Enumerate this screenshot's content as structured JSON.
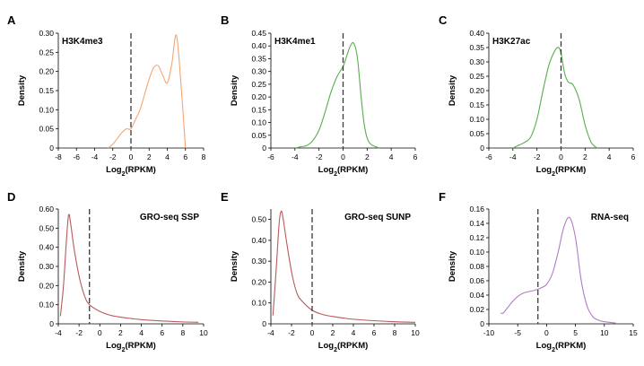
{
  "chart_data": [
    {
      "panel": "A",
      "type": "line",
      "title": "H3K4me3",
      "xlabel": "Log2(RPKM)",
      "ylabel": "Density",
      "xlim": [
        -8,
        8
      ],
      "ylim": [
        0,
        0.3
      ],
      "xticks": [
        -8,
        -6,
        -4,
        -2,
        0,
        2,
        4,
        6,
        8
      ],
      "yticks": [
        0,
        0.05,
        0.1,
        0.15,
        0.2,
        0.25,
        0.3
      ],
      "ytick_labels": [
        "0",
        "0.05",
        "0.10",
        "0.15",
        "0.20",
        "0.25",
        "0.30"
      ],
      "vline": 0,
      "series": [
        {
          "color": "#f4a574",
          "x": [
            -2.5,
            -2,
            -1.5,
            -1,
            -0.5,
            0,
            0.5,
            1,
            1.5,
            2,
            2.5,
            3,
            3.5,
            4,
            4.5,
            5,
            5.5,
            6
          ],
          "y": [
            0,
            0.01,
            0.025,
            0.04,
            0.05,
            0.05,
            0.075,
            0.1,
            0.14,
            0.18,
            0.21,
            0.215,
            0.19,
            0.17,
            0.22,
            0.295,
            0.17,
            0.0
          ]
        }
      ]
    },
    {
      "panel": "B",
      "type": "line",
      "title": "H3K4me1",
      "xlabel": "Log2(RPKM)",
      "ylabel": "Density",
      "xlim": [
        -6,
        6
      ],
      "ylim": [
        0,
        0.45
      ],
      "xticks": [
        -6,
        -4,
        -2,
        0,
        2,
        4,
        6
      ],
      "yticks": [
        0,
        0.05,
        0.1,
        0.15,
        0.2,
        0.25,
        0.3,
        0.35,
        0.4,
        0.45
      ],
      "ytick_labels": [
        "0",
        "0.05",
        "0.10",
        "0.15",
        "0.20",
        "0.25",
        "0.30",
        "0.35",
        "0.40",
        "0.45"
      ],
      "vline": 0,
      "series": [
        {
          "color": "#5aad4f",
          "x": [
            -4,
            -3.5,
            -3,
            -2.5,
            -2,
            -1.5,
            -1,
            -0.5,
            0,
            0.3,
            0.6,
            0.9,
            1.2,
            1.5,
            1.8,
            2.2,
            3
          ],
          "y": [
            0,
            0.005,
            0.01,
            0.03,
            0.07,
            0.14,
            0.22,
            0.28,
            0.32,
            0.36,
            0.4,
            0.41,
            0.35,
            0.2,
            0.08,
            0.02,
            0.0
          ]
        }
      ]
    },
    {
      "panel": "C",
      "type": "line",
      "title": "H3K27ac",
      "xlabel": "Log2(RPKM)",
      "ylabel": "Density",
      "xlim": [
        -6,
        6
      ],
      "ylim": [
        0,
        0.4
      ],
      "xticks": [
        -6,
        -4,
        -2,
        0,
        2,
        4,
        6
      ],
      "yticks": [
        0,
        0.05,
        0.1,
        0.15,
        0.2,
        0.25,
        0.3,
        0.35,
        0.4
      ],
      "ytick_labels": [
        "0",
        "0.05",
        "0.10",
        "0.15",
        "0.20",
        "0.25",
        "0.30",
        "0.35",
        "0.40"
      ],
      "vline": 0,
      "series": [
        {
          "color": "#5aad4f",
          "x": [
            -4,
            -3.5,
            -3,
            -2.5,
            -2,
            -1.5,
            -1,
            -0.5,
            -0.2,
            0,
            0.3,
            0.6,
            1,
            1.5,
            2,
            2.5,
            3
          ],
          "y": [
            0,
            0.01,
            0.02,
            0.04,
            0.1,
            0.2,
            0.29,
            0.34,
            0.35,
            0.33,
            0.26,
            0.23,
            0.22,
            0.17,
            0.08,
            0.02,
            0.0
          ]
        }
      ]
    },
    {
      "panel": "D",
      "type": "line",
      "title": "GRO-seq SSP",
      "xlabel": "Log2(RPKM)",
      "ylabel": "Density",
      "xlim": [
        -4,
        10
      ],
      "ylim": [
        0,
        0.6
      ],
      "xticks": [
        -4,
        -2,
        0,
        2,
        4,
        6,
        8,
        10
      ],
      "yticks": [
        0,
        0.1,
        0.2,
        0.3,
        0.4,
        0.5,
        0.6
      ],
      "ytick_labels": [
        "0",
        "0.10",
        "0.20",
        "0.30",
        "0.40",
        "0.50",
        "0.60"
      ],
      "vline": -1,
      "series": [
        {
          "color": "#b85a5a",
          "x": [
            -3.8,
            -3.5,
            -3.2,
            -3,
            -2.8,
            -2.5,
            -2,
            -1.5,
            -1,
            0,
            1,
            2,
            3,
            4,
            6,
            8,
            9.5
          ],
          "y": [
            0.04,
            0.2,
            0.45,
            0.57,
            0.52,
            0.4,
            0.25,
            0.15,
            0.1,
            0.065,
            0.045,
            0.035,
            0.028,
            0.022,
            0.015,
            0.01,
            0.008
          ]
        }
      ]
    },
    {
      "panel": "E",
      "type": "line",
      "title": "GRO-seq SUNP",
      "xlabel": "Log2(RPKM)",
      "ylabel": "Density",
      "xlim": [
        -4,
        10
      ],
      "ylim": [
        0,
        0.55
      ],
      "xticks": [
        -4,
        -2,
        0,
        2,
        4,
        6,
        8,
        10
      ],
      "yticks": [
        0,
        0.1,
        0.2,
        0.3,
        0.4,
        0.5
      ],
      "ytick_labels": [
        "0",
        "0.10",
        "0.20",
        "0.30",
        "0.40",
        "0.50"
      ],
      "vline": 0,
      "series": [
        {
          "color": "#b85a5a",
          "x": [
            -3.8,
            -3.5,
            -3.2,
            -3,
            -2.8,
            -2.5,
            -2,
            -1.5,
            -1,
            0,
            1,
            2,
            3,
            4,
            6,
            8,
            10
          ],
          "y": [
            0.04,
            0.25,
            0.48,
            0.54,
            0.5,
            0.4,
            0.25,
            0.15,
            0.11,
            0.065,
            0.045,
            0.035,
            0.028,
            0.022,
            0.015,
            0.01,
            0.007
          ]
        }
      ]
    },
    {
      "panel": "F",
      "type": "line",
      "title": "RNA-seq",
      "xlabel": "Log2(RPKM)",
      "ylabel": "Density",
      "xlim": [
        -10,
        15
      ],
      "ylim": [
        0,
        0.16
      ],
      "xticks": [
        -10,
        -5,
        0,
        5,
        10,
        15
      ],
      "yticks": [
        0,
        0.02,
        0.04,
        0.06,
        0.08,
        0.1,
        0.12,
        0.14,
        0.16
      ],
      "ytick_labels": [
        "0",
        "0.02",
        "0.04",
        "0.06",
        "0.08",
        "0.10",
        "0.12",
        "0.14",
        "0.16"
      ],
      "vline": -1.5,
      "series": [
        {
          "color": "#b27cc4",
          "x": [
            -8,
            -7.5,
            -7,
            -6,
            -5,
            -4,
            -3,
            -2,
            -1,
            0,
            1,
            2,
            3,
            4,
            5,
            6,
            7,
            8,
            9,
            10,
            11,
            12
          ],
          "y": [
            0.015,
            0.015,
            0.02,
            0.03,
            0.038,
            0.043,
            0.045,
            0.047,
            0.05,
            0.055,
            0.07,
            0.1,
            0.135,
            0.148,
            0.12,
            0.06,
            0.025,
            0.01,
            0.005,
            0.003,
            0.002,
            0.001
          ]
        }
      ]
    }
  ]
}
